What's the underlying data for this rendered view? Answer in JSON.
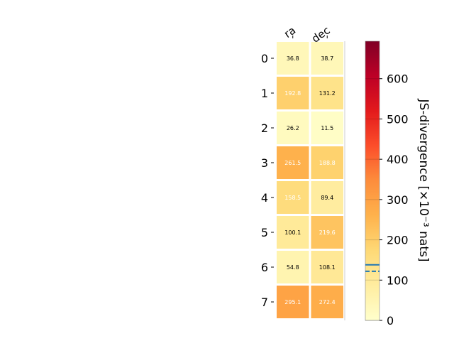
{
  "chart_data": {
    "type": "heatmap",
    "columns": [
      "ra",
      "dec"
    ],
    "rows": [
      "0",
      "1",
      "2",
      "3",
      "4",
      "5",
      "6",
      "7"
    ],
    "values": [
      [
        36.8,
        38.7
      ],
      [
        192.8,
        131.2
      ],
      [
        26.2,
        11.5
      ],
      [
        261.5,
        188.8
      ],
      [
        158.5,
        89.4
      ],
      [
        100.1,
        219.6
      ],
      [
        54.8,
        108.1
      ],
      [
        295.1,
        272.4
      ]
    ],
    "cell_labels": [
      [
        "36.8",
        "38.7"
      ],
      [
        "192.8",
        "131.2"
      ],
      [
        "26.2",
        "11.5"
      ],
      [
        "261.5",
        "188.8"
      ],
      [
        "158.5",
        "89.4"
      ],
      [
        "100.1",
        "219.6"
      ],
      [
        "54.8",
        "108.1"
      ],
      [
        "295.1",
        "272.4"
      ]
    ],
    "colorbar": {
      "label": "JS-divergence [×10⁻³ nats]",
      "range": [
        0,
        693
      ],
      "ticks": [
        0,
        100,
        200,
        300,
        400,
        500,
        600
      ],
      "tick_labels": [
        "0",
        "100",
        "200",
        "300",
        "400",
        "500",
        "600"
      ],
      "colormap": "YlOrRd",
      "solid_marker": 138,
      "dashed_marker": 122,
      "marker_color": "#1f77b4"
    }
  }
}
